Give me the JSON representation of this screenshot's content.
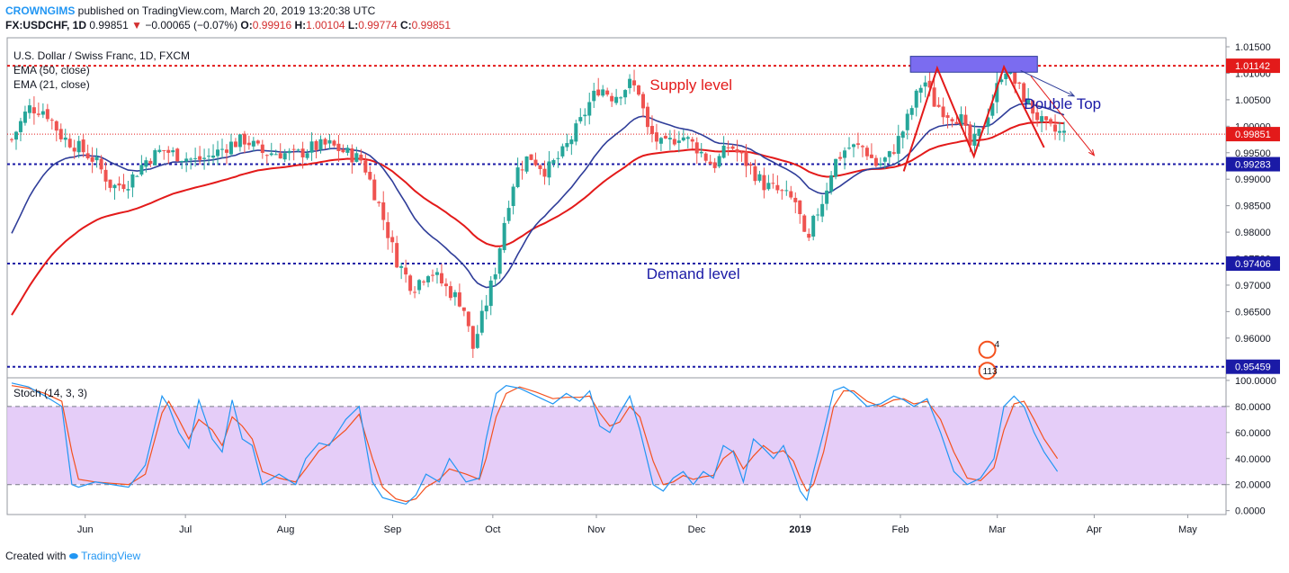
{
  "header": {
    "author": "CROWNGIMS",
    "published": "published on TradingView.com, March 20, 2019 13:20:38 UTC",
    "symbol_line": "FX:USDCHF, 1D",
    "last": "0.99851",
    "change": "−0.00065 (−0.07%)",
    "o_label": "O:",
    "o": "0.99916",
    "h_label": "H:",
    "h": "1.00104",
    "l_label": "L:",
    "l": "0.99774",
    "c_label": "C:",
    "c": "0.99851"
  },
  "footer": {
    "created": "Created with",
    "brand": "TradingView"
  },
  "colors": {
    "up": "#26a69a",
    "down": "#ef5350",
    "ema50": "#e31a1a",
    "ema21": "#2f3d99",
    "level_red": "#e31a1a",
    "level_blue": "#1a1aa6",
    "stoch_k": "#2196f3",
    "stoch_d": "#f4511e",
    "stoch_band": "#e1c4f7",
    "supply_box": "#7b6cf0"
  },
  "chart_data": [
    {
      "type": "candlestick",
      "title": "U.S. Dollar / Swiss Franc, 1D, FXCM",
      "indicators": [
        "EMA (50, close)",
        "EMA (21, close)"
      ],
      "y_ticks": [
        "1.01500",
        "1.01000",
        "1.00500",
        "1.00000",
        "0.99500",
        "0.99000",
        "0.98500",
        "0.98000",
        "0.97500",
        "0.97000",
        "0.96500",
        "0.96000",
        "0.95500"
      ],
      "ylim": [
        0.9525,
        1.0167
      ],
      "x_ticks": [
        "Jun",
        "Jul",
        "Aug",
        "Sep",
        "Oct",
        "Nov",
        "Dec",
        "2019",
        "Feb",
        "Mar",
        "Apr",
        "May"
      ],
      "x_tick_days": [
        22,
        52,
        82,
        114,
        144,
        175,
        205,
        236,
        266,
        295,
        324,
        352
      ],
      "last_day": 315,
      "price_path": [
        [
          0,
          0.9975
        ],
        [
          5,
          1.0035
        ],
        [
          10,
          1.003
        ],
        [
          15,
          0.998
        ],
        [
          20,
          0.996
        ],
        [
          25,
          0.9935
        ],
        [
          30,
          0.9885
        ],
        [
          35,
          0.9895
        ],
        [
          40,
          0.9935
        ],
        [
          45,
          0.9955
        ],
        [
          50,
          0.9945
        ],
        [
          55,
          0.9935
        ],
        [
          60,
          0.9945
        ],
        [
          65,
          0.9965
        ],
        [
          70,
          0.9975
        ],
        [
          75,
          0.995
        ],
        [
          80,
          0.995
        ],
        [
          85,
          0.9945
        ],
        [
          90,
          0.996
        ],
        [
          95,
          0.9965
        ],
        [
          100,
          0.995
        ],
        [
          105,
          0.9935
        ],
        [
          110,
          0.985
        ],
        [
          115,
          0.975
        ],
        [
          120,
          0.9695
        ],
        [
          125,
          0.973
        ],
        [
          130,
          0.9695
        ],
        [
          135,
          0.9665
        ],
        [
          138,
          0.958
        ],
        [
          142,
          0.9665
        ],
        [
          145,
          0.9735
        ],
        [
          148,
          0.984
        ],
        [
          151,
          0.9915
        ],
        [
          155,
          0.9945
        ],
        [
          160,
          0.9915
        ],
        [
          165,
          0.995
        ],
        [
          170,
          1.0005
        ],
        [
          173,
          1.0045
        ],
        [
          176,
          1.0075
        ],
        [
          180,
          1.0055
        ],
        [
          185,
          1.008
        ],
        [
          188,
          1.0065
        ],
        [
          190,
          0.9995
        ],
        [
          195,
          0.996
        ],
        [
          200,
          0.9985
        ],
        [
          205,
          0.996
        ],
        [
          210,
          0.9925
        ],
        [
          215,
          0.9965
        ],
        [
          220,
          0.993
        ],
        [
          225,
          0.989
        ],
        [
          230,
          0.9875
        ],
        [
          235,
          0.9855
        ],
        [
          238,
          0.9765
        ],
        [
          240,
          0.982
        ],
        [
          243,
          0.9865
        ],
        [
          246,
          0.993
        ],
        [
          250,
          0.996
        ],
        [
          255,
          0.996
        ],
        [
          259,
          0.9925
        ],
        [
          263,
          0.9945
        ],
        [
          267,
          0.9995
        ],
        [
          270,
          1.0045
        ],
        [
          273,
          1.009
        ],
        [
          276,
          1.0045
        ],
        [
          280,
          1.0025
        ],
        [
          284,
          1.0015
        ],
        [
          287,
          0.996
        ],
        [
          290,
          0.999
        ],
        [
          294,
          1.0055
        ],
        [
          297,
          1.0115
        ],
        [
          301,
          1.0075
        ],
        [
          305,
          1.0035
        ],
        [
          309,
          1.0
        ],
        [
          312,
          0.999
        ],
        [
          315,
          0.9985
        ]
      ],
      "levels": [
        {
          "value": 1.01142,
          "label": "1.01142",
          "color": "#e31a1a"
        },
        {
          "value": 0.99851,
          "label": "0.99851",
          "color": "#e31a1a",
          "dotted": true
        },
        {
          "value": 0.99283,
          "label": "0.99283",
          "color": "#1a1aa6"
        },
        {
          "value": 0.97406,
          "label": "0.97406",
          "color": "#1a1aa6"
        },
        {
          "value": 0.95459,
          "label": "0.95459",
          "color": "#1a1aa6"
        }
      ],
      "annotations": {
        "supply": "Supply level",
        "demand": "Demand level",
        "double_top": "Double Top",
        "badge_top": "4",
        "badge_bottom": "113"
      },
      "supply_zone": {
        "day_start": 269,
        "day_end": 307,
        "price_low": 1.0102,
        "price_high": 1.0132
      },
      "zigzag": [
        [
          267,
          0.9915
        ],
        [
          277,
          1.011
        ],
        [
          288,
          0.9943
        ],
        [
          297,
          1.0112
        ],
        [
          309,
          0.996
        ]
      ],
      "arrows": [
        {
          "from": [
            302,
            1.0105
          ],
          "to": [
            318,
            1.0057
          ]
        },
        {
          "from": [
            305,
            1.0095
          ],
          "to": [
            324,
            0.9945
          ]
        }
      ]
    },
    {
      "type": "line",
      "title": "Stoch (14, 3, 3)",
      "y_ticks": [
        "100.0000",
        "80.0000",
        "60.0000",
        "40.0000",
        "20.0000",
        "0.0000"
      ],
      "ylim": [
        -3,
        102
      ],
      "band": [
        20,
        80
      ],
      "k_path": [
        [
          0,
          98
        ],
        [
          5,
          95
        ],
        [
          10,
          88
        ],
        [
          15,
          80
        ],
        [
          18,
          20
        ],
        [
          20,
          18
        ],
        [
          25,
          22
        ],
        [
          30,
          20
        ],
        [
          35,
          18
        ],
        [
          40,
          35
        ],
        [
          45,
          88
        ],
        [
          47,
          80
        ],
        [
          50,
          60
        ],
        [
          53,
          48
        ],
        [
          56,
          85
        ],
        [
          60,
          55
        ],
        [
          63,
          45
        ],
        [
          66,
          85
        ],
        [
          69,
          55
        ],
        [
          72,
          50
        ],
        [
          75,
          20
        ],
        [
          80,
          28
        ],
        [
          85,
          20
        ],
        [
          88,
          40
        ],
        [
          92,
          52
        ],
        [
          95,
          50
        ],
        [
          100,
          70
        ],
        [
          104,
          80
        ],
        [
          108,
          22
        ],
        [
          111,
          10
        ],
        [
          115,
          7
        ],
        [
          118,
          5
        ],
        [
          121,
          12
        ],
        [
          124,
          28
        ],
        [
          128,
          22
        ],
        [
          131,
          40
        ],
        [
          136,
          22
        ],
        [
          140,
          25
        ],
        [
          142,
          55
        ],
        [
          145,
          90
        ],
        [
          148,
          96
        ],
        [
          152,
          94
        ],
        [
          157,
          88
        ],
        [
          162,
          82
        ],
        [
          166,
          90
        ],
        [
          170,
          84
        ],
        [
          173,
          92
        ],
        [
          176,
          65
        ],
        [
          179,
          60
        ],
        [
          182,
          75
        ],
        [
          185,
          88
        ],
        [
          188,
          62
        ],
        [
          192,
          20
        ],
        [
          195,
          15
        ],
        [
          198,
          25
        ],
        [
          201,
          30
        ],
        [
          204,
          20
        ],
        [
          207,
          30
        ],
        [
          210,
          25
        ],
        [
          213,
          50
        ],
        [
          216,
          45
        ],
        [
          219,
          22
        ],
        [
          222,
          55
        ],
        [
          225,
          48
        ],
        [
          228,
          40
        ],
        [
          231,
          50
        ],
        [
          234,
          30
        ],
        [
          236,
          15
        ],
        [
          238,
          8
        ],
        [
          240,
          30
        ],
        [
          243,
          60
        ],
        [
          246,
          92
        ],
        [
          249,
          95
        ],
        [
          252,
          90
        ],
        [
          256,
          80
        ],
        [
          260,
          82
        ],
        [
          264,
          88
        ],
        [
          267,
          85
        ],
        [
          270,
          80
        ],
        [
          274,
          86
        ],
        [
          278,
          60
        ],
        [
          282,
          30
        ],
        [
          286,
          20
        ],
        [
          290,
          25
        ],
        [
          294,
          40
        ],
        [
          297,
          80
        ],
        [
          300,
          88
        ],
        [
          303,
          80
        ],
        [
          306,
          60
        ],
        [
          309,
          45
        ],
        [
          313,
          30
        ]
      ],
      "d_path": [
        [
          0,
          96
        ],
        [
          5,
          94
        ],
        [
          10,
          90
        ],
        [
          15,
          84
        ],
        [
          18,
          45
        ],
        [
          20,
          24
        ],
        [
          25,
          22
        ],
        [
          30,
          21
        ],
        [
          35,
          20
        ],
        [
          40,
          28
        ],
        [
          45,
          75
        ],
        [
          47,
          84
        ],
        [
          50,
          70
        ],
        [
          53,
          55
        ],
        [
          56,
          70
        ],
        [
          60,
          62
        ],
        [
          63,
          50
        ],
        [
          66,
          72
        ],
        [
          69,
          65
        ],
        [
          72,
          55
        ],
        [
          75,
          30
        ],
        [
          80,
          25
        ],
        [
          85,
          22
        ],
        [
          88,
          32
        ],
        [
          92,
          46
        ],
        [
          95,
          51
        ],
        [
          100,
          62
        ],
        [
          104,
          74
        ],
        [
          108,
          40
        ],
        [
          111,
          18
        ],
        [
          115,
          9
        ],
        [
          118,
          7
        ],
        [
          121,
          9
        ],
        [
          124,
          18
        ],
        [
          128,
          24
        ],
        [
          131,
          32
        ],
        [
          136,
          28
        ],
        [
          140,
          24
        ],
        [
          142,
          40
        ],
        [
          145,
          72
        ],
        [
          148,
          90
        ],
        [
          152,
          95
        ],
        [
          157,
          91
        ],
        [
          162,
          86
        ],
        [
          166,
          87
        ],
        [
          170,
          87
        ],
        [
          173,
          88
        ],
        [
          176,
          75
        ],
        [
          179,
          65
        ],
        [
          182,
          68
        ],
        [
          185,
          80
        ],
        [
          188,
          72
        ],
        [
          192,
          38
        ],
        [
          195,
          20
        ],
        [
          198,
          22
        ],
        [
          201,
          27
        ],
        [
          204,
          24
        ],
        [
          207,
          26
        ],
        [
          210,
          27
        ],
        [
          213,
          40
        ],
        [
          216,
          46
        ],
        [
          219,
          32
        ],
        [
          222,
          42
        ],
        [
          225,
          50
        ],
        [
          228,
          44
        ],
        [
          231,
          46
        ],
        [
          234,
          38
        ],
        [
          236,
          25
        ],
        [
          238,
          15
        ],
        [
          240,
          20
        ],
        [
          243,
          45
        ],
        [
          246,
          80
        ],
        [
          249,
          92
        ],
        [
          252,
          92
        ],
        [
          256,
          84
        ],
        [
          260,
          80
        ],
        [
          264,
          85
        ],
        [
          267,
          86
        ],
        [
          270,
          82
        ],
        [
          274,
          84
        ],
        [
          278,
          70
        ],
        [
          282,
          45
        ],
        [
          286,
          25
        ],
        [
          290,
          23
        ],
        [
          294,
          33
        ],
        [
          297,
          62
        ],
        [
          300,
          82
        ],
        [
          303,
          84
        ],
        [
          306,
          70
        ],
        [
          309,
          55
        ],
        [
          313,
          40
        ]
      ]
    }
  ]
}
